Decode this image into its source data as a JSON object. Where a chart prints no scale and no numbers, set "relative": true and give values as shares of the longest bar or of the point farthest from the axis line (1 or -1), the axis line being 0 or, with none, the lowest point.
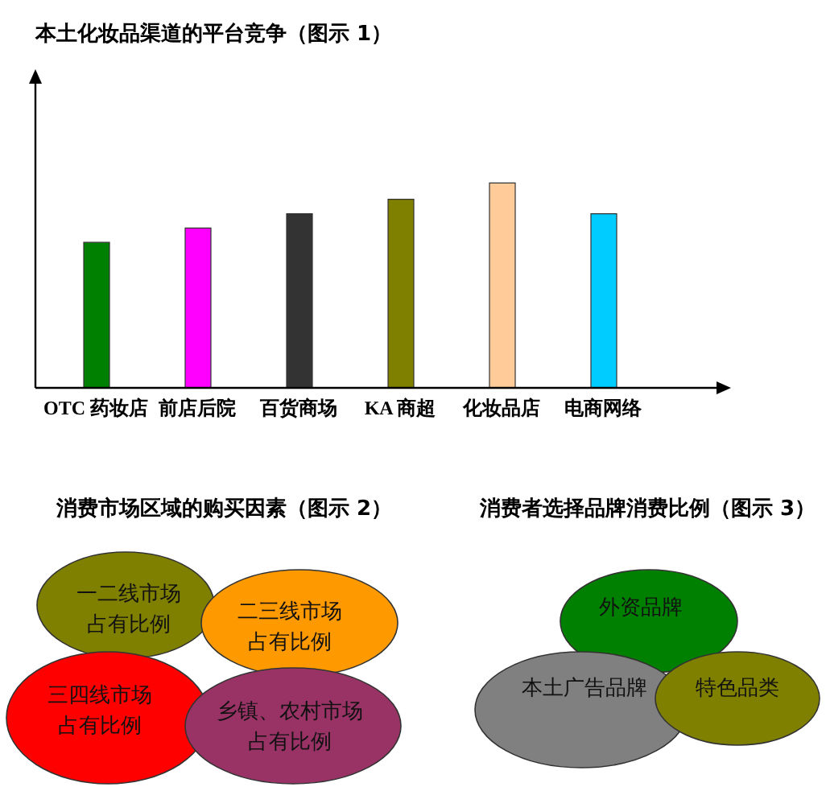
{
  "chart_data": [
    {
      "type": "bar",
      "title": "本土化妆品渠道的平台竞争（图示 1）",
      "categories": [
        "OTC 药妆店",
        "前店后院",
        "百货商场",
        "KA 商超",
        "化妆品店",
        "电商网络"
      ],
      "values": [
        0.71,
        0.78,
        0.85,
        0.92,
        1,
        0.85
      ],
      "colors": [
        "#008000",
        "#ff00ff",
        "#333333",
        "#808000",
        "#ffcc99",
        "#00ccff"
      ],
      "relative": true
    },
    {
      "type": "other",
      "title": "消费市场区域的购买因素（图示 2）",
      "categories": [
        "一二线市场占有比例",
        "二三线市场占有比例",
        "三四线市场占有比例",
        "乡镇、农村市场占有比例"
      ],
      "colors": [
        "#808000",
        "#ff9900",
        "#ff0000",
        "#993366"
      ]
    },
    {
      "type": "other",
      "title": "消费者选择品牌消费比例（图示 3）",
      "categories": [
        "外资品牌",
        "本土广告品牌",
        "特色品类"
      ],
      "colors": [
        "#008000",
        "#808080",
        "#808000"
      ]
    }
  ]
}
